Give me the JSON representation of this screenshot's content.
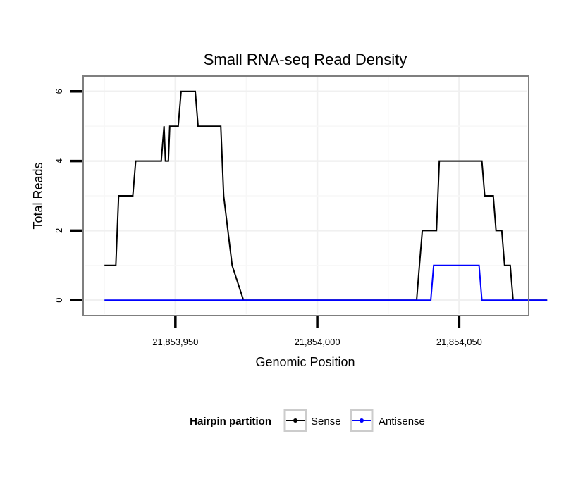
{
  "chart_data": {
    "type": "line",
    "title": "Small RNA-seq Read Density",
    "xlabel": "Genomic Position",
    "ylabel": "Total Reads",
    "xlim": [
      21853918,
      21854074
    ],
    "ylim": [
      -0.4,
      6.4
    ],
    "x_ticks": [
      {
        "value": 21853950,
        "label": "21,853,950"
      },
      {
        "value": 21854000,
        "label": "21,854,000"
      },
      {
        "value": 21854050,
        "label": "21,854,050"
      }
    ],
    "y_ticks": [
      {
        "value": 0,
        "label": "0"
      },
      {
        "value": 2,
        "label": "2"
      },
      {
        "value": 4,
        "label": "4"
      },
      {
        "value": 6,
        "label": "6"
      }
    ],
    "grid": true,
    "legend": {
      "title": "Hairpin partition",
      "position": "bottom",
      "entries": [
        "Sense",
        "Antisense"
      ]
    },
    "series": [
      {
        "name": "Sense",
        "color": "#000000",
        "x": [
          21853925,
          21853929,
          21853930,
          21853935,
          21853936,
          21853945,
          21853946,
          21853946.5,
          21853947.5,
          21853948,
          21853951,
          21853952,
          21853957,
          21853958,
          21853966,
          21853967,
          21853970,
          21853974,
          21854035,
          21854036,
          21854037,
          21854042,
          21854043,
          21854058,
          21854059,
          21854062,
          21854063,
          21854065,
          21854066,
          21854068,
          21854069,
          21854071,
          21854072,
          21854081
        ],
        "y": [
          1,
          1,
          3,
          3,
          4,
          4,
          5,
          4,
          4,
          5,
          5,
          6,
          6,
          5,
          5,
          3,
          1,
          0,
          0,
          1,
          2,
          2,
          4,
          4,
          3,
          3,
          2,
          2,
          1,
          1,
          0,
          0,
          0,
          0
        ]
      },
      {
        "name": "Antisense",
        "color": "#0000ff",
        "x": [
          21853925,
          21854040,
          21854041,
          21854057,
          21854058,
          21854081
        ],
        "y": [
          0,
          0,
          1,
          1,
          0,
          0
        ]
      }
    ]
  }
}
